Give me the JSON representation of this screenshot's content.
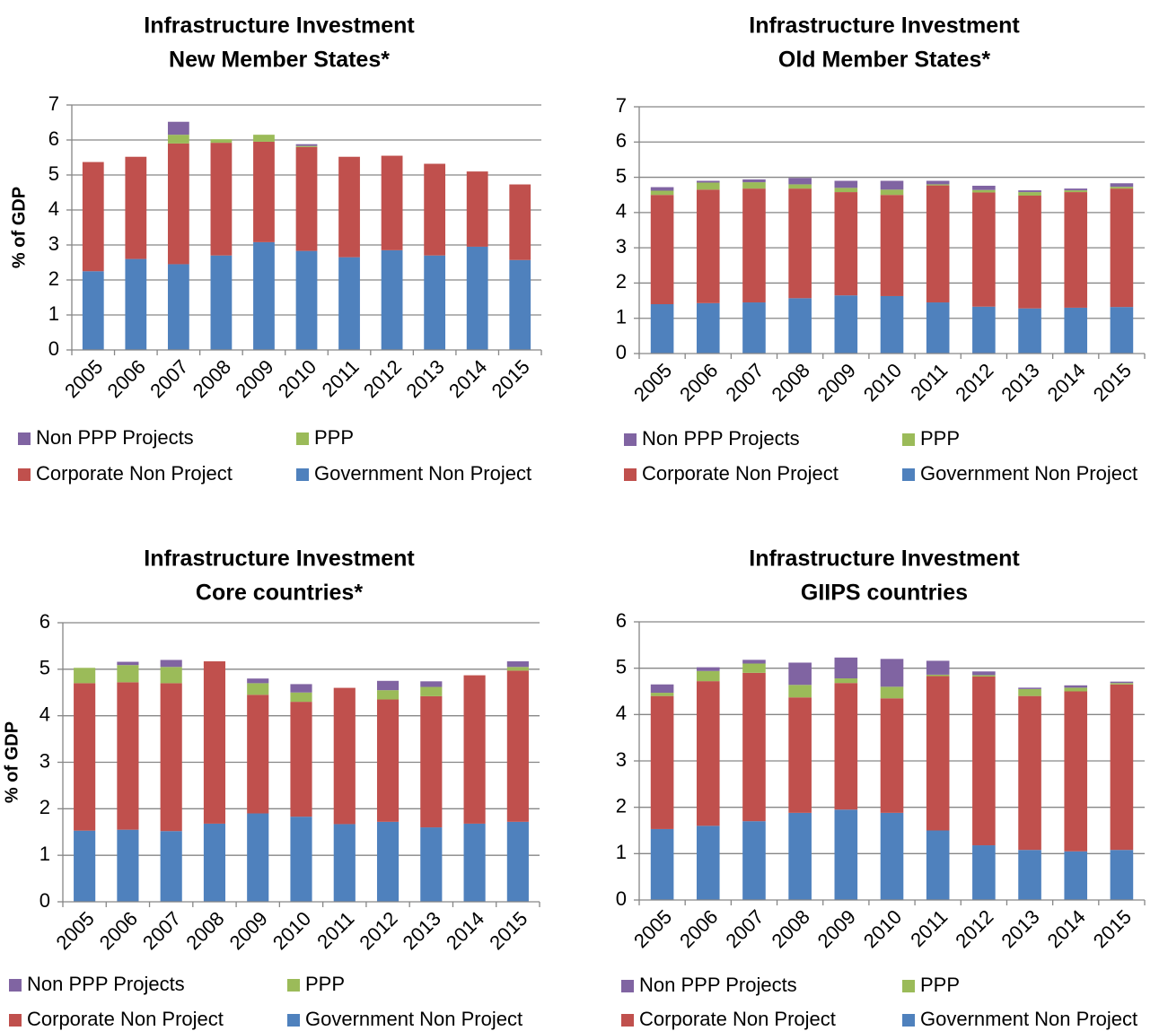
{
  "chart_data": [
    {
      "type": "stacked_bar",
      "title": "Infrastructure Investment",
      "subtitle": "New Member States*",
      "ylabel": "% of GDP",
      "categories": [
        "2005",
        "2006",
        "2007",
        "2008",
        "2009",
        "2010",
        "2011",
        "2012",
        "2013",
        "2014",
        "2015"
      ],
      "ylim": [
        0,
        7
      ],
      "yticks": [
        0,
        1,
        2,
        3,
        4,
        5,
        6,
        7
      ],
      "grid": true,
      "series": [
        {
          "name": "Non PPP Projects",
          "color": "#8064a2",
          "values": [
            0,
            0,
            0.37,
            0,
            0,
            0.05,
            0,
            0,
            0,
            0,
            0
          ]
        },
        {
          "name": "PPP",
          "color": "#9bbb59",
          "values": [
            0,
            0,
            0.25,
            0.1,
            0.2,
            0.03,
            0,
            0,
            0,
            0,
            0
          ]
        },
        {
          "name": "Corporate Non Project",
          "color": "#c0504d",
          "values": [
            3.12,
            2.92,
            3.45,
            3.22,
            2.87,
            2.97,
            2.87,
            2.7,
            2.62,
            2.15,
            2.16
          ]
        },
        {
          "name": "Government Non Project",
          "color": "#4f81bd",
          "values": [
            2.25,
            2.6,
            2.45,
            2.7,
            3.08,
            2.83,
            2.65,
            2.85,
            2.7,
            2.95,
            2.57
          ]
        }
      ]
    },
    {
      "type": "stacked_bar",
      "title": "Infrastructure Investment",
      "subtitle": "Old Member States*",
      "categories": [
        "2005",
        "2006",
        "2007",
        "2008",
        "2009",
        "2010",
        "2011",
        "2012",
        "2013",
        "2014",
        "2015"
      ],
      "ylim": [
        0,
        7
      ],
      "yticks": [
        0,
        1,
        2,
        3,
        4,
        5,
        6,
        7
      ],
      "grid": true,
      "series": [
        {
          "name": "Non PPP Projects",
          "color": "#8064a2",
          "values": [
            0.1,
            0.05,
            0.08,
            0.18,
            0.2,
            0.25,
            0.1,
            0.12,
            0.05,
            0.05,
            0.1
          ]
        },
        {
          "name": "PPP",
          "color": "#9bbb59",
          "values": [
            0.12,
            0.2,
            0.18,
            0.12,
            0.12,
            0.15,
            0.03,
            0.07,
            0.1,
            0.05,
            0.05
          ]
        },
        {
          "name": "Corporate Non Project",
          "color": "#c0504d",
          "values": [
            3.1,
            3.22,
            3.23,
            3.11,
            2.93,
            2.87,
            3.32,
            3.24,
            3.2,
            3.28,
            3.36
          ]
        },
        {
          "name": "Government Non Project",
          "color": "#4f81bd",
          "values": [
            1.4,
            1.43,
            1.45,
            1.57,
            1.65,
            1.63,
            1.45,
            1.33,
            1.28,
            1.3,
            1.32
          ]
        }
      ]
    },
    {
      "type": "stacked_bar",
      "title": "Infrastructure Investment",
      "subtitle": "Core countries*",
      "ylabel": "% of GDP",
      "categories": [
        "2005",
        "2006",
        "2007",
        "2008",
        "2009",
        "2010",
        "2011",
        "2012",
        "2013",
        "2014",
        "2015"
      ],
      "ylim": [
        0,
        6
      ],
      "yticks": [
        0,
        1,
        2,
        3,
        4,
        5,
        6
      ],
      "grid": true,
      "series": [
        {
          "name": "Non PPP Projects",
          "color": "#8064a2",
          "values": [
            0,
            0.07,
            0.15,
            0,
            0.1,
            0.18,
            0,
            0.2,
            0.12,
            0,
            0.12
          ]
        },
        {
          "name": "PPP",
          "color": "#9bbb59",
          "values": [
            0.33,
            0.37,
            0.35,
            0,
            0.25,
            0.2,
            0,
            0.2,
            0.2,
            0,
            0.08
          ]
        },
        {
          "name": "Corporate Non Project",
          "color": "#c0504d",
          "values": [
            3.17,
            3.17,
            3.18,
            3.49,
            2.55,
            2.47,
            2.93,
            2.63,
            2.82,
            3.19,
            3.25
          ]
        },
        {
          "name": "Government Non Project",
          "color": "#4f81bd",
          "values": [
            1.53,
            1.55,
            1.52,
            1.68,
            1.9,
            1.83,
            1.67,
            1.72,
            1.6,
            1.68,
            1.72
          ]
        }
      ]
    },
    {
      "type": "stacked_bar",
      "title": "Infrastructure Investment",
      "subtitle": "GIIPS countries",
      "categories": [
        "2005",
        "2006",
        "2007",
        "2008",
        "2009",
        "2010",
        "2011",
        "2012",
        "2013",
        "2014",
        "2015"
      ],
      "ylim": [
        0,
        6
      ],
      "yticks": [
        0,
        1,
        2,
        3,
        4,
        5,
        6
      ],
      "grid": true,
      "series": [
        {
          "name": "Non PPP Projects",
          "color": "#8064a2",
          "values": [
            0.18,
            0.08,
            0.08,
            0.48,
            0.45,
            0.6,
            0.3,
            0.08,
            0.03,
            0.05,
            0.03
          ]
        },
        {
          "name": "PPP",
          "color": "#9bbb59",
          "values": [
            0.07,
            0.22,
            0.2,
            0.27,
            0.1,
            0.25,
            0.03,
            0.03,
            0.15,
            0.08,
            0.03
          ]
        },
        {
          "name": "Corporate Non Project",
          "color": "#c0504d",
          "values": [
            2.87,
            3.12,
            3.2,
            2.49,
            2.73,
            2.47,
            3.33,
            3.64,
            3.32,
            3.45,
            3.57
          ]
        },
        {
          "name": "Government Non Project",
          "color": "#4f81bd",
          "values": [
            1.53,
            1.6,
            1.7,
            1.88,
            1.95,
            1.88,
            1.5,
            1.18,
            1.08,
            1.05,
            1.08
          ]
        }
      ]
    }
  ]
}
